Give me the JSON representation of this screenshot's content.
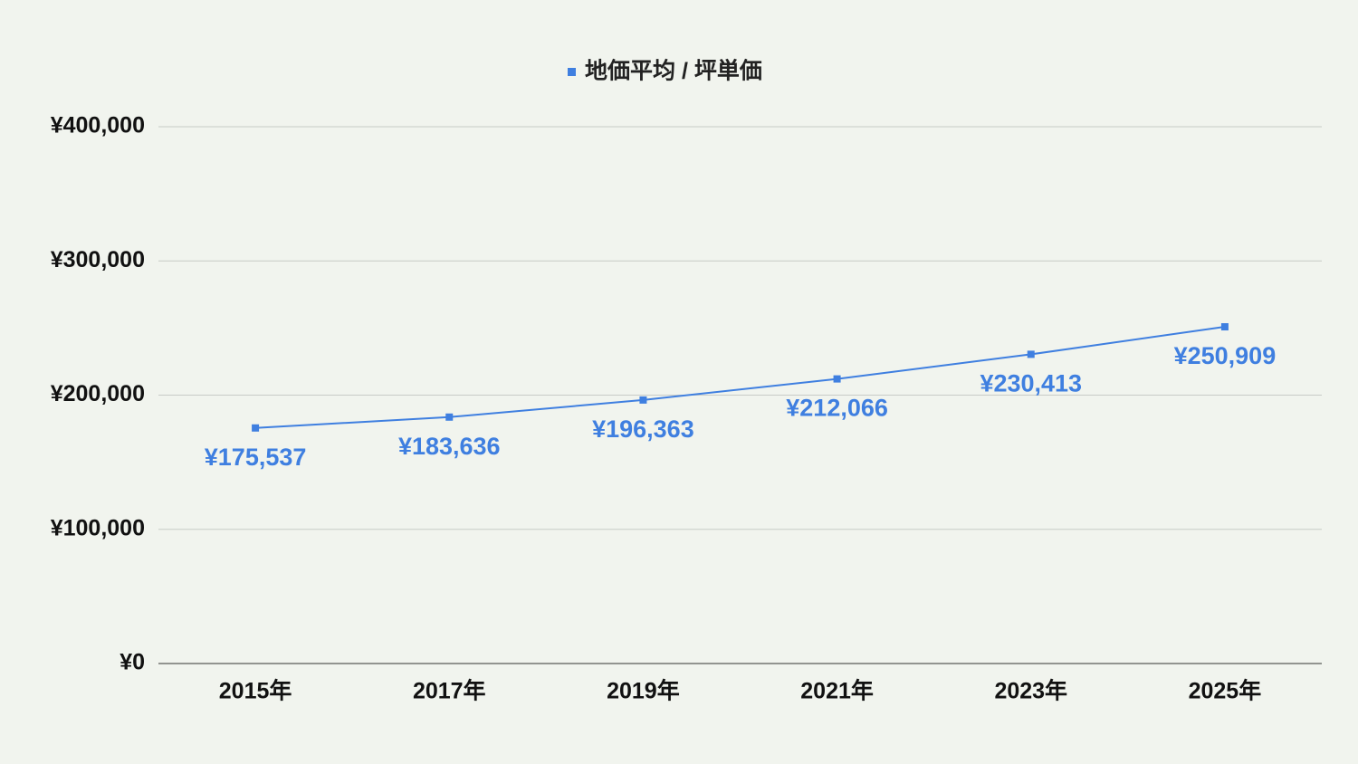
{
  "chart_data": {
    "type": "line",
    "categories": [
      "2015年",
      "2017年",
      "2019年",
      "2021年",
      "2023年",
      "2025年"
    ],
    "series": [
      {
        "name": "地価平均 / 坪単価",
        "color": "#3f7fe0",
        "values": [
          175537,
          183636,
          196363,
          212066,
          230413,
          250909
        ],
        "value_labels": [
          "¥175,537",
          "¥183,636",
          "¥196,363",
          "¥212,066",
          "¥230,413",
          "¥250,909"
        ]
      }
    ],
    "ylim": [
      0,
      400000
    ],
    "yticks": [
      {
        "value": 0,
        "label": "¥0"
      },
      {
        "value": 100000,
        "label": "¥100,000"
      },
      {
        "value": 200000,
        "label": "¥200,000"
      },
      {
        "value": 300000,
        "label": "¥300,000"
      },
      {
        "value": 400000,
        "label": "¥400,000"
      }
    ],
    "grid": true,
    "legend": "top"
  }
}
